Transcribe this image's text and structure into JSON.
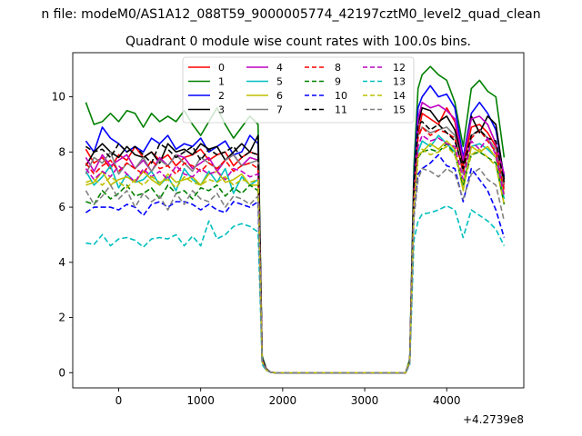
{
  "chart_data": {
    "type": "line",
    "suptitle": "n file: modeM0/AS1A12_088T59_9000005774_42197cztM0_level2_quad_clean",
    "title": "Quadrant 0 module wise count rates with 100.0s bins.",
    "xlabel": "",
    "ylabel": "",
    "x_offset_label": "+4.2739e8",
    "xlim": [
      -560,
      4940
    ],
    "ylim": [
      -0.55,
      11.6
    ],
    "xticks": [
      0,
      1000,
      2000,
      3000,
      4000
    ],
    "yticks": [
      0,
      2,
      4,
      6,
      8,
      10
    ],
    "grid": false,
    "legend": {
      "placement": "top-center",
      "ncol": 4
    },
    "x": [
      -400,
      -300,
      -200,
      -100,
      0,
      100,
      200,
      300,
      400,
      500,
      600,
      700,
      800,
      900,
      1000,
      1100,
      1200,
      1300,
      1400,
      1500,
      1600,
      1700,
      1750,
      1800,
      1850,
      1900,
      2000,
      2200,
      2400,
      2600,
      2800,
      3000,
      3200,
      3400,
      3500,
      3550,
      3600,
      3650,
      3700,
      3800,
      3900,
      4000,
      4100,
      4200,
      4300,
      4400,
      4500,
      4600,
      4700
    ],
    "series": [
      {
        "name": "0",
        "color": "#ff0000",
        "dash": "solid",
        "values": [
          8.1,
          7.6,
          7.8,
          7.4,
          7.9,
          7.7,
          8.2,
          7.8,
          8.0,
          7.7,
          7.9,
          7.5,
          7.8,
          7.9,
          8.1,
          7.7,
          7.9,
          8.0,
          7.5,
          7.8,
          8.0,
          7.9,
          0.5,
          0.12,
          0.02,
          0,
          0,
          0,
          0,
          0,
          0,
          0,
          0,
          0,
          0,
          0.4,
          6.5,
          8.6,
          9.4,
          9.2,
          9.0,
          9.6,
          9.1,
          7.5,
          8.9,
          9.0,
          8.7,
          8.2,
          6.8
        ]
      },
      {
        "name": "1",
        "color": "#008000",
        "dash": "solid",
        "values": [
          9.8,
          9.0,
          9.1,
          9.4,
          9.1,
          9.5,
          9.4,
          8.9,
          9.4,
          9.1,
          9.3,
          9.1,
          9.5,
          9.0,
          8.6,
          9.1,
          9.6,
          9.0,
          8.5,
          8.9,
          9.3,
          9.0,
          0.6,
          0.15,
          0.02,
          0,
          0,
          0,
          0,
          0,
          0,
          0,
          0,
          0,
          0,
          0.5,
          7.5,
          10.3,
          10.8,
          11.1,
          10.8,
          10.6,
          9.8,
          8.2,
          10.3,
          10.6,
          10.2,
          10.0,
          7.8
        ]
      },
      {
        "name": "2",
        "color": "#0000ff",
        "dash": "solid",
        "values": [
          8.4,
          8.0,
          8.9,
          8.5,
          8.3,
          8.0,
          8.2,
          8.0,
          8.5,
          8.3,
          8.6,
          8.1,
          8.3,
          8.2,
          8.5,
          8.0,
          8.2,
          8.4,
          7.9,
          8.0,
          8.6,
          8.3,
          0.5,
          0.13,
          0.02,
          0,
          0,
          0,
          0,
          0,
          0,
          0,
          0,
          0,
          0,
          0.4,
          7.0,
          9.6,
          10.0,
          10.4,
          10.0,
          10.1,
          9.6,
          7.8,
          9.4,
          9.8,
          9.4,
          8.8,
          7.1
        ]
      },
      {
        "name": "3",
        "color": "#000000",
        "dash": "solid",
        "values": [
          7.5,
          8.0,
          8.3,
          8.0,
          7.8,
          8.2,
          7.9,
          7.8,
          8.0,
          7.6,
          8.3,
          8.0,
          8.1,
          7.9,
          8.3,
          8.1,
          8.2,
          7.7,
          8.0,
          8.3,
          8.0,
          8.6,
          0.5,
          0.12,
          0.02,
          0,
          0,
          0,
          0,
          0,
          0,
          0,
          0,
          0,
          0,
          0.4,
          6.8,
          9.0,
          9.6,
          9.5,
          9.1,
          9.3,
          8.8,
          7.6,
          9.3,
          8.7,
          9.3,
          9.0,
          7.0
        ]
      },
      {
        "name": "4",
        "color": "#bf00bf",
        "dash": "solid",
        "values": [
          7.8,
          7.3,
          7.9,
          7.5,
          7.7,
          7.9,
          7.4,
          7.7,
          7.3,
          7.8,
          7.5,
          7.9,
          7.8,
          7.4,
          7.6,
          7.8,
          7.3,
          7.7,
          7.9,
          7.5,
          7.8,
          7.7,
          0.45,
          0.12,
          0.02,
          0,
          0,
          0,
          0,
          0,
          0,
          0,
          0,
          0,
          0,
          0.4,
          6.4,
          9.2,
          9.8,
          9.6,
          9.7,
          9.5,
          9.2,
          7.7,
          9.2,
          9.3,
          9.0,
          8.3,
          7.2
        ]
      },
      {
        "name": "5",
        "color": "#00bfbf",
        "dash": "solid",
        "values": [
          7.3,
          6.8,
          7.1,
          7.5,
          6.7,
          7.2,
          6.9,
          7.0,
          7.3,
          6.8,
          7.1,
          6.6,
          7.4,
          7.0,
          6.8,
          7.3,
          6.9,
          7.4,
          6.5,
          7.1,
          6.8,
          7.0,
          0.4,
          0.11,
          0.02,
          0,
          0,
          0,
          0,
          0,
          0,
          0,
          0,
          0,
          0,
          0.4,
          6.3,
          8.0,
          8.4,
          8.2,
          8.6,
          8.3,
          8.0,
          6.8,
          8.2,
          8.3,
          8.1,
          7.8,
          6.3
        ]
      },
      {
        "name": "6",
        "color": "#bfbf00",
        "dash": "solid",
        "values": [
          6.8,
          6.9,
          7.3,
          6.8,
          7.0,
          7.1,
          6.9,
          7.3,
          7.0,
          6.8,
          7.2,
          6.9,
          7.0,
          7.1,
          6.8,
          7.2,
          7.3,
          6.9,
          7.0,
          7.2,
          6.8,
          6.8,
          0.4,
          0.11,
          0.02,
          0,
          0,
          0,
          0,
          0,
          0,
          0,
          0,
          0,
          0,
          0.4,
          6.2,
          7.9,
          8.0,
          8.3,
          8.1,
          8.4,
          8.1,
          6.6,
          8.2,
          8.0,
          8.2,
          7.8,
          6.5
        ]
      },
      {
        "name": "7",
        "color": "#808080",
        "dash": "solid",
        "values": [
          7.2,
          7.8,
          7.6,
          8.0,
          7.2,
          7.6,
          7.4,
          7.8,
          7.3,
          7.7,
          7.5,
          7.9,
          7.6,
          7.3,
          7.8,
          7.6,
          7.4,
          7.7,
          7.9,
          7.5,
          7.6,
          7.7,
          0.45,
          0.12,
          0.02,
          0,
          0,
          0,
          0,
          0,
          0,
          0,
          0,
          0,
          0,
          0.4,
          6.6,
          8.6,
          8.9,
          8.7,
          8.8,
          8.9,
          8.6,
          7.2,
          8.6,
          8.8,
          8.5,
          8.1,
          6.7
        ]
      },
      {
        "name": "8",
        "color": "#ff0000",
        "dash": "dashed",
        "values": [
          7.6,
          7.2,
          7.5,
          7.7,
          7.3,
          7.6,
          7.4,
          7.2,
          7.7,
          7.4,
          7.5,
          7.2,
          7.6,
          7.5,
          7.3,
          7.6,
          7.4,
          7.7,
          7.3,
          7.5,
          7.6,
          7.4,
          0.45,
          0.12,
          0.02,
          0,
          0,
          0,
          0,
          0,
          0,
          0,
          0,
          0,
          0,
          0.4,
          6.5,
          8.5,
          8.9,
          8.6,
          8.8,
          8.7,
          8.5,
          7.3,
          8.5,
          8.8,
          8.4,
          8.0,
          6.6
        ]
      },
      {
        "name": "9",
        "color": "#008000",
        "dash": "dashed",
        "values": [
          6.2,
          6.1,
          6.6,
          6.3,
          6.5,
          6.8,
          6.4,
          6.5,
          6.7,
          6.3,
          6.8,
          6.5,
          6.6,
          6.3,
          6.7,
          6.6,
          6.8,
          6.4,
          6.7,
          6.5,
          6.8,
          6.6,
          0.4,
          0.1,
          0.02,
          0,
          0,
          0,
          0,
          0,
          0,
          0,
          0,
          0,
          0,
          0.4,
          6.2,
          7.8,
          8.0,
          8.1,
          8.0,
          8.3,
          7.9,
          6.8,
          7.9,
          8.0,
          7.8,
          7.6,
          6.1
        ]
      },
      {
        "name": "10",
        "color": "#0000ff",
        "dash": "dashed",
        "values": [
          5.8,
          6.0,
          6.0,
          6.0,
          5.9,
          6.1,
          6.0,
          5.7,
          6.1,
          6.2,
          6.0,
          6.2,
          6.2,
          6.1,
          5.9,
          6.1,
          5.9,
          5.8,
          6.2,
          6.1,
          6.0,
          6.2,
          0.4,
          0.1,
          0.02,
          0,
          0,
          0,
          0,
          0,
          0,
          0,
          0,
          0,
          0,
          0.35,
          5.8,
          7.2,
          7.4,
          7.6,
          7.9,
          7.5,
          7.4,
          6.2,
          7.4,
          7.0,
          6.6,
          5.9,
          4.9
        ]
      },
      {
        "name": "11",
        "color": "#000000",
        "dash": "dashed",
        "values": [
          8.2,
          8.0,
          8.1,
          7.8,
          8.3,
          8.0,
          8.2,
          7.9,
          7.6,
          8.3,
          8.1,
          7.8,
          8.0,
          8.2,
          7.7,
          8.1,
          7.9,
          8.0,
          8.2,
          7.8,
          8.0,
          7.9,
          0.5,
          0.12,
          0.02,
          0,
          0,
          0,
          0,
          0,
          0,
          0,
          0,
          0,
          0,
          0.4,
          6.8,
          9.0,
          9.1,
          8.8,
          9.0,
          8.7,
          8.4,
          7.4,
          8.6,
          8.8,
          8.5,
          8.4,
          6.9
        ]
      },
      {
        "name": "12",
        "color": "#bf00bf",
        "dash": "dashed",
        "values": [
          7.4,
          7.0,
          7.3,
          7.1,
          7.5,
          7.2,
          6.9,
          7.4,
          7.1,
          7.3,
          7.0,
          7.5,
          7.2,
          7.1,
          7.4,
          7.2,
          7.3,
          7.0,
          7.4,
          7.3,
          7.1,
          7.2,
          0.45,
          0.11,
          0.02,
          0,
          0,
          0,
          0,
          0,
          0,
          0,
          0,
          0,
          0,
          0.4,
          6.2,
          8.2,
          8.6,
          8.4,
          8.5,
          8.3,
          8.2,
          7.0,
          8.4,
          8.1,
          8.5,
          7.9,
          6.4
        ]
      },
      {
        "name": "13",
        "color": "#00bfbf",
        "dash": "dashed",
        "values": [
          4.7,
          4.65,
          5.0,
          4.6,
          4.85,
          4.9,
          4.8,
          4.55,
          4.85,
          4.9,
          4.85,
          5.0,
          4.6,
          4.95,
          4.6,
          5.5,
          4.85,
          5.0,
          5.3,
          5.4,
          5.3,
          5.1,
          0.3,
          0.08,
          0.02,
          0,
          0,
          0,
          0,
          0,
          0,
          0,
          0,
          0,
          0,
          0.3,
          4.8,
          5.5,
          5.75,
          5.8,
          5.9,
          6.05,
          5.9,
          4.9,
          5.9,
          5.7,
          5.5,
          5.2,
          4.6
        ]
      },
      {
        "name": "14",
        "color": "#bfbf00",
        "dash": "dashed",
        "values": [
          6.9,
          7.0,
          6.8,
          7.1,
          6.9,
          6.7,
          7.0,
          6.8,
          7.1,
          6.9,
          7.0,
          6.7,
          7.1,
          6.9,
          6.8,
          7.0,
          6.9,
          7.1,
          6.8,
          7.0,
          6.9,
          7.0,
          0.4,
          0.1,
          0.02,
          0,
          0,
          0,
          0,
          0,
          0,
          0,
          0,
          0,
          0,
          0.4,
          6.0,
          7.8,
          8.1,
          7.9,
          8.0,
          8.2,
          7.9,
          6.9,
          7.9,
          8.1,
          7.8,
          7.5,
          6.1
        ]
      },
      {
        "name": "15",
        "color": "#808080",
        "dash": "dashed",
        "values": [
          6.6,
          6.1,
          6.4,
          6.8,
          6.3,
          6.6,
          6.0,
          6.5,
          6.2,
          6.4,
          5.9,
          6.5,
          6.1,
          6.6,
          6.3,
          6.2,
          6.5,
          6.0,
          6.4,
          6.3,
          6.1,
          6.4,
          0.4,
          0.1,
          0.02,
          0,
          0,
          0,
          0,
          0,
          0,
          0,
          0,
          0,
          0,
          0.35,
          5.6,
          7.0,
          7.4,
          7.3,
          7.1,
          7.4,
          7.2,
          6.3,
          7.2,
          7.4,
          7.0,
          6.8,
          5.5
        ]
      }
    ]
  }
}
